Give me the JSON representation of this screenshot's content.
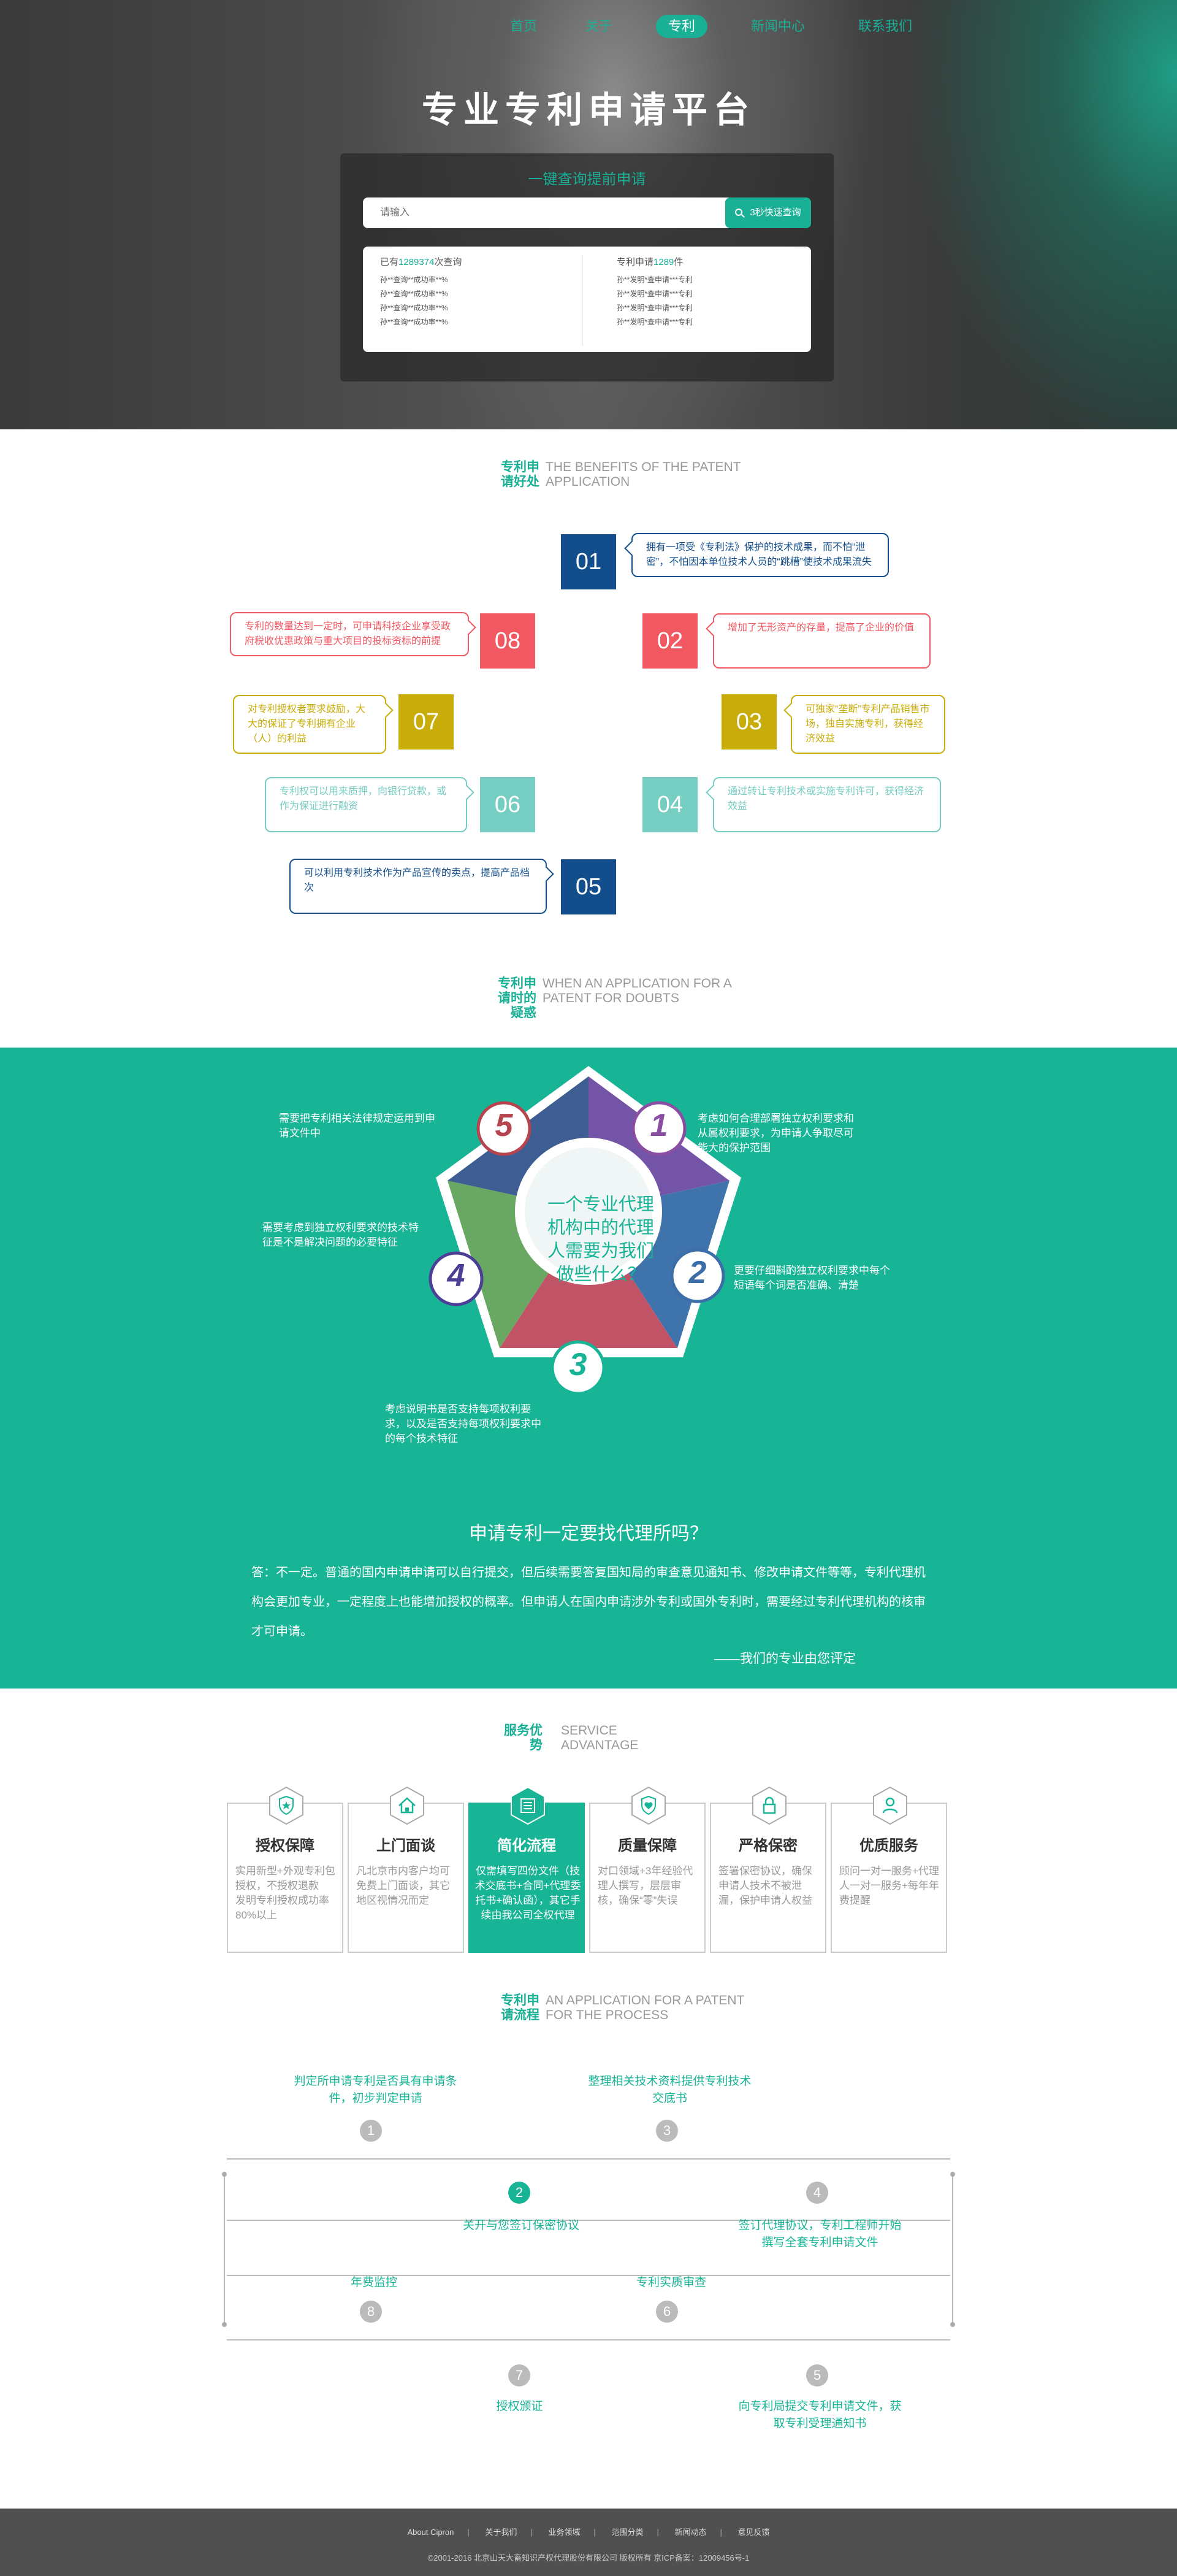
{
  "nav": {
    "items": [
      "首页",
      "关于",
      "专利",
      "新闻中心",
      "联系我们"
    ],
    "active_index": 2
  },
  "hero": {
    "title": "专业专利申请平台",
    "search_title": "一键查询提前申请",
    "search_placeholder": "请输入",
    "search_button": "3秒快速查询",
    "left_head_prefix": "已有",
    "left_head_num": "1289374",
    "left_head_suffix": "次查询",
    "left_lines": [
      "孙**查询**成功率**%",
      "孙**查询**成功率**%",
      "孙**查询**成功率**%",
      "孙**查询**成功率**%"
    ],
    "right_head_prefix": "专利申请",
    "right_head_num": "1289",
    "right_head_suffix": "件",
    "right_lines": [
      "孙**发明*查申请***专利",
      "孙**发明*查申请***专利",
      "孙**发明*查申请***专利",
      "孙**发明*查申请***专利"
    ]
  },
  "benefits": {
    "heading_cn": "专利申请好处",
    "heading_en": "THE BENEFITS OF THE PATENT APPLICATION",
    "items": [
      {
        "num": "01",
        "text": "拥有一项受《专利法》保护的技术成果，而不怕“泄密”，不怕因本单位技术人员的“跳槽”使技术成果流失",
        "color": "#124e8c"
      },
      {
        "num": "02",
        "text": "增加了无形资产的存量，提高了企业的价值",
        "color": "#f15862"
      },
      {
        "num": "03",
        "text": "可独家“垄断”专利产品销售市场，独自实施专利，获得经济效益",
        "color": "#c8ac09"
      },
      {
        "num": "04",
        "text": "通过转让专利技术或实施专利许可，获得经济效益",
        "color": "#76cdc1"
      },
      {
        "num": "05",
        "text": "可以利用专利技术作为产品宣传的卖点，提高产品档次",
        "color": "#124e8c"
      },
      {
        "num": "06",
        "text": "专利权可以用来质押，向银行贷款，或作为保证进行融资",
        "color": "#76cdc1"
      },
      {
        "num": "07",
        "text": "对专利授权者要求鼓励，大大的保证了专利拥有企业（人）的利益",
        "color": "#c8ac09"
      },
      {
        "num": "08",
        "text": "专利的数量达到一定时，可申请科技企业享受政府税收优惠政策与重大项目的投标资标的前提",
        "color": "#f15862"
      }
    ]
  },
  "doubts": {
    "heading_cn": "专利申请时的疑惑",
    "heading_en": "WHEN AN APPLICATION FOR A PATENT FOR DOUBTS",
    "center": "一个专业代理机构中的代理人需要为我们做些什么？",
    "notes": [
      {
        "num": "1",
        "text": "考虑如何合理部署独立权利要求和从属权利要求，为申请人争取尽可能大的保护范围",
        "color": "#8a4fa3"
      },
      {
        "num": "2",
        "text": "更要仔细斟酌独立权利要求中每个短语每个词是否准确、清楚",
        "color": "#3c6ea8"
      },
      {
        "num": "3",
        "text": "考虑说明书是否支持每项权利要求，以及是否支持每项权利要求中的每个技术特征",
        "color": "#17b496"
      },
      {
        "num": "4",
        "text": "需要考虑到独立权利要求的技术特征是不是解决问题的必要特征",
        "color": "#4b3f96"
      },
      {
        "num": "5",
        "text": "需要把专利相关法律规定运用到申请文件中",
        "color": "#b5444f"
      }
    ],
    "faq_title": "申请专利一定要找代理所吗？",
    "faq_text": "答：不一定。普通的国内申请申请可以自行提交，但后续需要答复国知局的审查意见通知书、修改申请文件等等，专利代理机构会更加专业，一定程度上也能增加授权的概率。但申请人在国内申请涉外专利或国外专利时，需要经过专利代理机构的核审才可申请。",
    "faq_sign": "——我们的专业由您评定"
  },
  "services": {
    "heading_cn": "服务优势",
    "heading_en": "SERVICE ADVANTAGE",
    "items": [
      {
        "icon": "shield-star-icon",
        "title": "授权保障",
        "desc": "实用新型+外观专利包授权，不授权退款\n发明专利授权成功率80%以上"
      },
      {
        "icon": "home-icon",
        "title": "上门面谈",
        "desc": "凡北京市内客户均可免费上门面谈，其它地区视情况而定"
      },
      {
        "icon": "document-list-icon",
        "title": "简化流程",
        "desc": "仅需填写四份文件（技术交底书+合同+代理委托书+确认函），其它手续由我公司全权代理"
      },
      {
        "icon": "shield-heart-icon",
        "title": "质量保障",
        "desc": "对口领域+3年经验代理人撰写，层层审核，确保“零”失误"
      },
      {
        "icon": "lock-icon",
        "title": "严格保密",
        "desc": "签署保密协议，确保申请人技术不被泄漏，保护申请人权益"
      },
      {
        "icon": "user-icon",
        "title": "优质服务",
        "desc": "顾问一对一服务+代理人一对一服务+每年年费提醒"
      }
    ],
    "active_index": 2
  },
  "process": {
    "heading_cn": "专利申请流程",
    "heading_en": "AN APPLICATION FOR A PATENT FOR THE PROCESS",
    "steps": [
      {
        "num": "1",
        "label": "判定所申请专利是否具有申请条件，初步判定申请"
      },
      {
        "num": "2",
        "label": "关开与您签订保密协议"
      },
      {
        "num": "3",
        "label": "整理相关技术资料提供专利技术交底书"
      },
      {
        "num": "4",
        "label": "签订代理协议，专利工程师开始撰写全套专利申请文件"
      },
      {
        "num": "5",
        "label": "向专利局提交专利申请文件，获取专利受理通知书"
      },
      {
        "num": "6",
        "label": "专利实质审查"
      },
      {
        "num": "7",
        "label": "授权颁证"
      },
      {
        "num": "8",
        "label": "年费监控"
      }
    ]
  },
  "footer": {
    "links": [
      "About Cipron",
      "关于我们",
      "业务领域",
      "范围分类",
      "新闻动态",
      "意见反馈"
    ],
    "copyright": "©2001-2016  北京山天大畜知识产权代理股份有限公司  版权所有    京ICP备案：12009456号-1"
  },
  "colors": {
    "accent": "#17b496",
    "navy": "#124e8c",
    "red": "#f15862",
    "gold": "#c8ac09",
    "mint": "#76cdc1"
  }
}
